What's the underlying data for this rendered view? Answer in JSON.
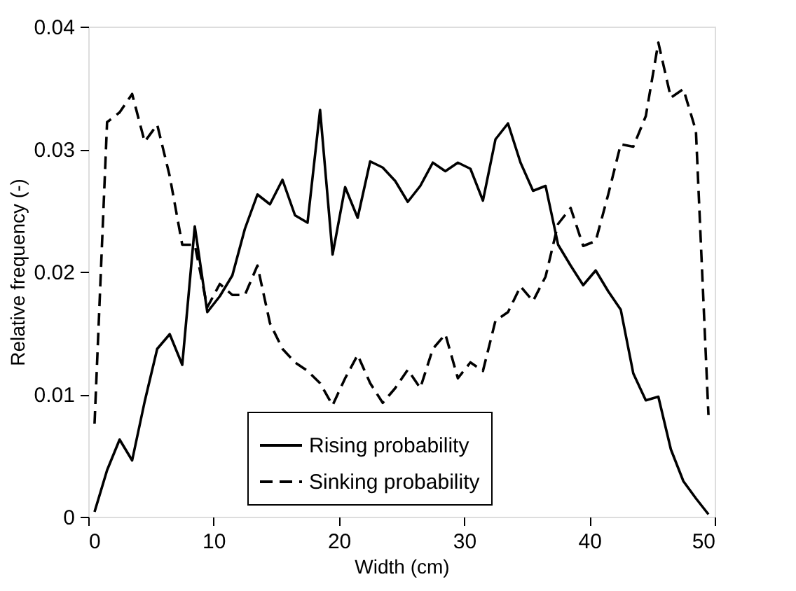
{
  "chart_data": {
    "type": "line",
    "xlabel": "Width (cm)",
    "ylabel": "Relative frequency (-)",
    "x": [
      0.5,
      1.5,
      2.5,
      3.5,
      4.5,
      5.5,
      6.5,
      7.5,
      8.5,
      9.5,
      10.5,
      11.5,
      12.5,
      13.5,
      14.5,
      15.5,
      16.5,
      17.5,
      18.5,
      19.5,
      20.5,
      21.5,
      22.5,
      23.5,
      24.5,
      25.5,
      26.5,
      27.5,
      28.5,
      29.5,
      30.5,
      31.5,
      32.5,
      33.5,
      34.5,
      35.5,
      36.5,
      37.5,
      38.5,
      39.5,
      40.5,
      41.5,
      42.5,
      43.5,
      44.5,
      45.5,
      46.5,
      47.5,
      48.5,
      49.5
    ],
    "series": [
      {
        "name": "Rising probability",
        "color": "#000000",
        "line_style": "solid",
        "values": [
          0.0004,
          0.0038,
          0.0063,
          0.0046,
          0.0094,
          0.0137,
          0.0149,
          0.0124,
          0.0237,
          0.0167,
          0.018,
          0.0197,
          0.0235,
          0.0263,
          0.0255,
          0.0275,
          0.0246,
          0.024,
          0.0332,
          0.0214,
          0.0269,
          0.0244,
          0.029,
          0.0285,
          0.0274,
          0.0257,
          0.027,
          0.0289,
          0.0282,
          0.0289,
          0.0284,
          0.0258,
          0.0308,
          0.0321,
          0.0289,
          0.0266,
          0.027,
          0.0222,
          0.0205,
          0.0189,
          0.0201,
          0.0184,
          0.0169,
          0.0117,
          0.0095,
          0.0098,
          0.0055,
          0.0029,
          0.0015,
          0.0002
        ]
      },
      {
        "name": "Sinking probability",
        "color": "#000000",
        "line_style": "dashed",
        "values": [
          0.0076,
          0.0322,
          0.033,
          0.0345,
          0.0306,
          0.032,
          0.0278,
          0.0222,
          0.0222,
          0.0171,
          0.019,
          0.0181,
          0.0181,
          0.0205,
          0.0158,
          0.0137,
          0.0126,
          0.0119,
          0.0109,
          0.0091,
          0.0113,
          0.0132,
          0.0109,
          0.0093,
          0.0105,
          0.012,
          0.0105,
          0.0137,
          0.0149,
          0.0113,
          0.0126,
          0.0119,
          0.016,
          0.0167,
          0.0188,
          0.0176,
          0.0196,
          0.0239,
          0.0252,
          0.0221,
          0.0225,
          0.0263,
          0.0304,
          0.0302,
          0.0327,
          0.0387,
          0.0342,
          0.0349,
          0.0315,
          0.0083
        ]
      }
    ],
    "xlim": [
      0,
      50
    ],
    "xticks": [
      0,
      10,
      20,
      30,
      40,
      50
    ],
    "ylim": [
      0,
      0.04
    ],
    "yticks": [
      0,
      0.01,
      0.02,
      0.03,
      0.04
    ],
    "grid": false,
    "legend": "bottom",
    "marker": "none"
  }
}
